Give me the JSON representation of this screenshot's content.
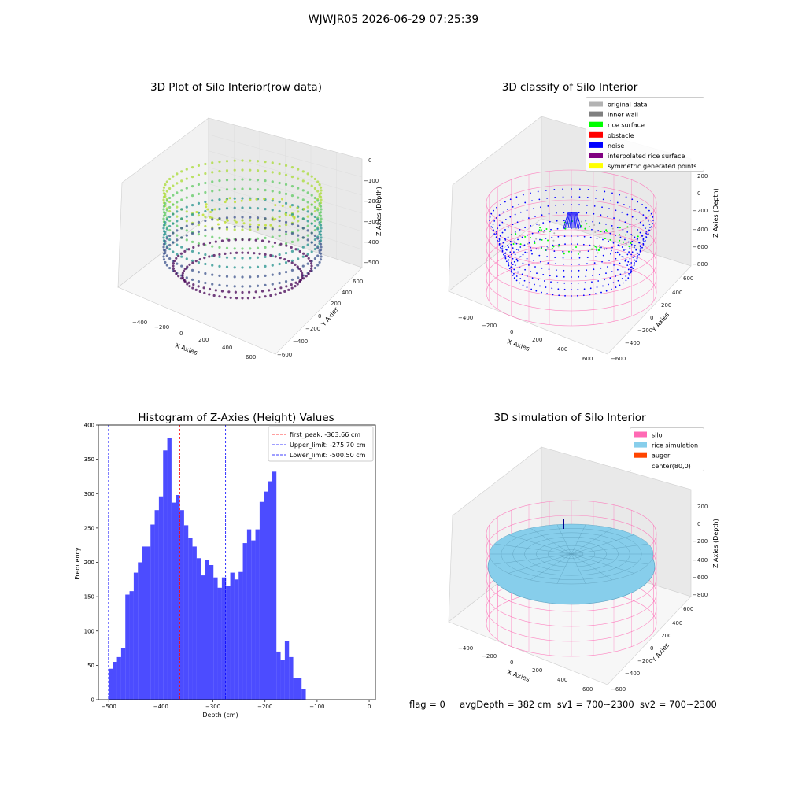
{
  "suptitle": "WJWJR05 2026-06-29 07:25:39",
  "panels": {
    "raw": {
      "title": "3D Plot of Silo Interior(row data)",
      "xlabel": "X Axies",
      "ylabel": "Y Axies",
      "zlabel": "Z Axies (Depth)",
      "xticks": [
        "−400",
        "−200",
        "0",
        "200",
        "400",
        "600"
      ],
      "yticks": [
        "−600",
        "−400",
        "−200",
        "0",
        "200",
        "400",
        "600"
      ],
      "zticks": [
        "0",
        "−100",
        "−200",
        "−300",
        "−400",
        "−500"
      ]
    },
    "classify": {
      "title": "3D classify of Silo Interior",
      "xlabel": "X Axies",
      "ylabel": "Y Axies",
      "zlabel": "Z Axies (Depth)",
      "xticks": [
        "−400",
        "−200",
        "0",
        "200",
        "400",
        "600"
      ],
      "yticks": [
        "−600",
        "−400",
        "−200",
        "0",
        "200",
        "400",
        "600"
      ],
      "zticks": [
        "200",
        "0",
        "−200",
        "−400",
        "−600",
        "−800"
      ],
      "legend": [
        {
          "label": "original data",
          "color": "#b3b3b3"
        },
        {
          "label": "inner wall",
          "color": "#808080"
        },
        {
          "label": "rice surface",
          "color": "#00ff00"
        },
        {
          "label": "obstacle",
          "color": "#ff0000"
        },
        {
          "label": "noise",
          "color": "#0000ff"
        },
        {
          "label": "interpolated rice surface",
          "color": "#800080"
        },
        {
          "label": "symmetric generated points",
          "color": "#ffff00"
        }
      ]
    },
    "simulation": {
      "title": "3D simulation of Silo Interior",
      "xlabel": "X Axies",
      "ylabel": "Y Axies",
      "zlabel": "Z Axies (Depth)",
      "xticks": [
        "−400",
        "−200",
        "0",
        "200",
        "400",
        "600"
      ],
      "yticks": [
        "−600",
        "−400",
        "−200",
        "0",
        "200",
        "400",
        "600"
      ],
      "zticks": [
        "200",
        "0",
        "−200",
        "−400",
        "−600",
        "−800"
      ],
      "legend": [
        {
          "label": "silo",
          "color": "#ff69b4"
        },
        {
          "label": "rice simulation",
          "color": "#87ceeb"
        },
        {
          "label": "auger",
          "color": "#ff4500"
        },
        {
          "label": "center(80,0)",
          "color": ""
        }
      ]
    }
  },
  "footer": {
    "flag": "flag = 0",
    "avg_depth": "avgDepth = 382 cm",
    "sv1": "sv1 = 700~2300",
    "sv2": "sv2 = 700~2300"
  },
  "chart_data": [
    {
      "type": "bar",
      "title": "Histogram of Z-Axies (Height) Values",
      "xlabel": "Depth (cm)",
      "ylabel": "Frequency",
      "xlim": [
        -520,
        12
      ],
      "ylim": [
        0,
        400
      ],
      "xticks": [
        -500,
        -400,
        -300,
        -200,
        -100,
        0
      ],
      "yticks": [
        0,
        50,
        100,
        150,
        200,
        250,
        300,
        350,
        400
      ],
      "bar_color": "#0000ff",
      "bin_start": -500.5,
      "bin_width": 8.06,
      "values": [
        45,
        55,
        62,
        75,
        153,
        158,
        185,
        200,
        223,
        223,
        255,
        276,
        296,
        363,
        381,
        287,
        298,
        276,
        254,
        236,
        223,
        206,
        181,
        203,
        196,
        178,
        163,
        178,
        166,
        185,
        175,
        186,
        228,
        248,
        232,
        248,
        288,
        303,
        318,
        332,
        70,
        58,
        85,
        62,
        31,
        31,
        16
      ],
      "vlines": [
        {
          "label": "first_peak: -363.66 cm",
          "x": -363.66,
          "color": "#ff0000"
        },
        {
          "label": "Upper_limit: -275.70 cm",
          "x": -275.7,
          "color": "#0000ff"
        },
        {
          "label": "Lower_limit: -500.50 cm",
          "x": -500.5,
          "color": "#0000ff"
        }
      ]
    }
  ]
}
